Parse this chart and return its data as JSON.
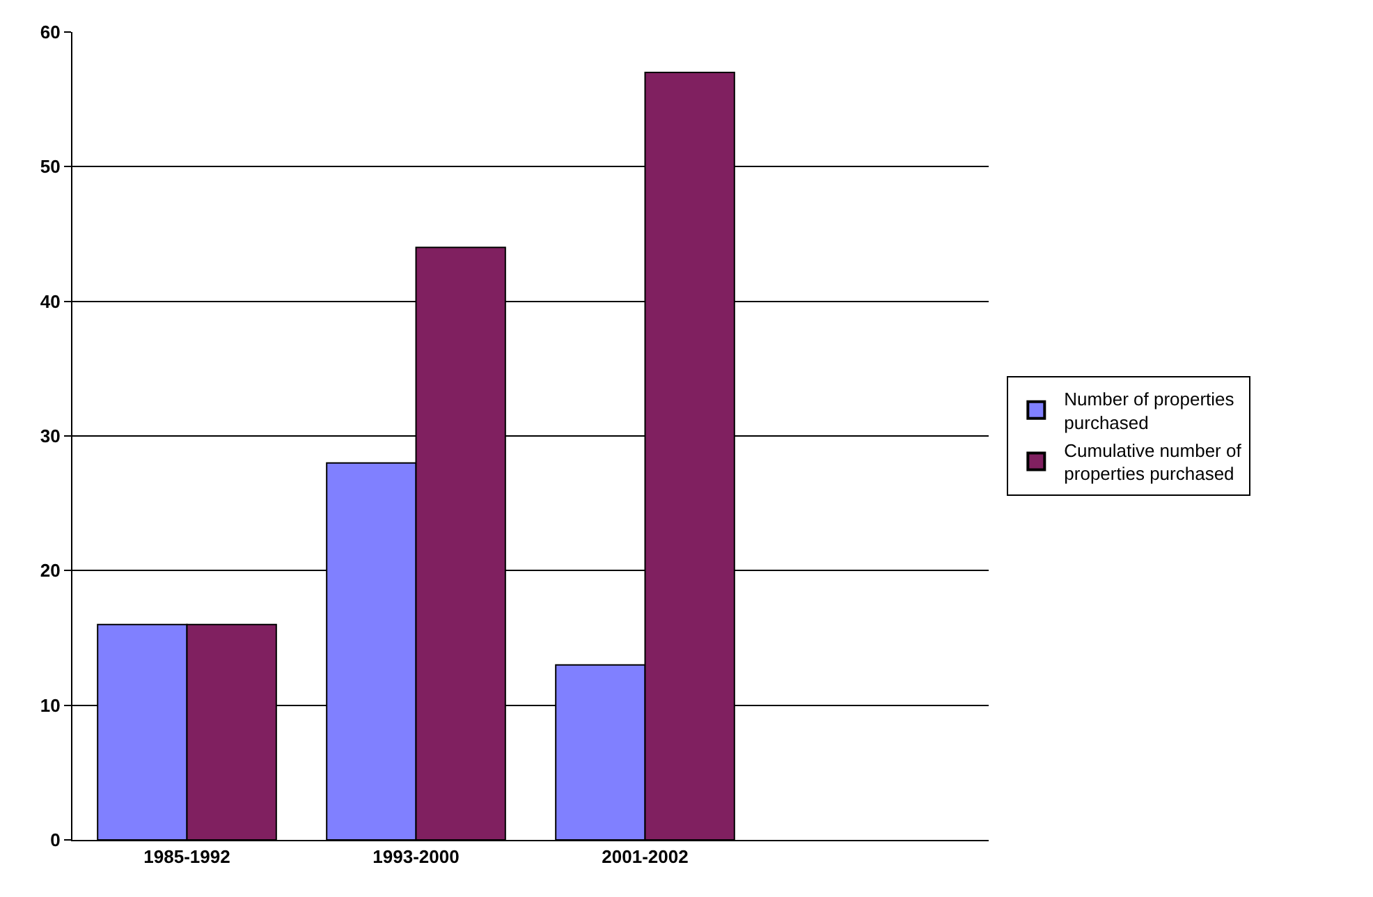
{
  "chart_data": {
    "type": "bar",
    "categories": [
      "1985-1992",
      "1993-2000",
      "2001-2002",
      null
    ],
    "series": [
      {
        "name": "Number of properties purchased",
        "color": "#8080ff",
        "values": [
          16,
          28,
          13,
          null
        ]
      },
      {
        "name": "Cumulative number of properties purchased",
        "color": "#802060",
        "values": [
          16,
          44,
          57,
          null
        ]
      }
    ],
    "ylim": [
      0,
      60
    ],
    "yticks": [
      0,
      10,
      20,
      30,
      40,
      50,
      60
    ],
    "grid": "y",
    "legend": "right"
  }
}
